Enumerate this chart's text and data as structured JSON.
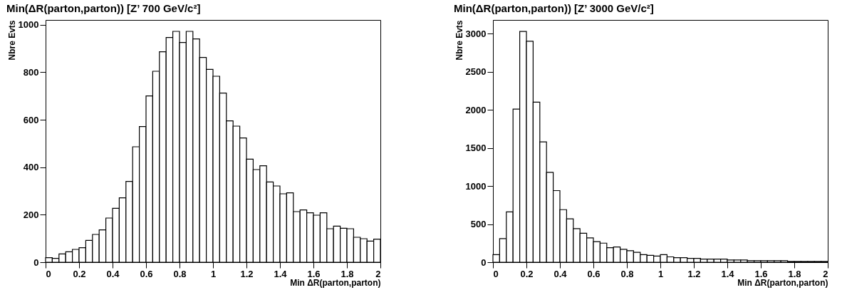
{
  "chart_data": [
    {
      "type": "histogram",
      "title": "Min(ΔR(parton,parton)) [Z’ 700 GeV/c²]",
      "xlabel": "Min ΔR(parton,parton)",
      "ylabel": "Nbre Evts",
      "color": "#000000",
      "bins": [
        0,
        0.04,
        0.08,
        0.12,
        0.16,
        0.2,
        0.24,
        0.28,
        0.32,
        0.36,
        0.4,
        0.44,
        0.48,
        0.52,
        0.56,
        0.6,
        0.64,
        0.68,
        0.72,
        0.76,
        0.8,
        0.84,
        0.88,
        0.92,
        0.96,
        1,
        1.04,
        1.08,
        1.12,
        1.16,
        1.2,
        1.24,
        1.28,
        1.32,
        1.36,
        1.4,
        1.44,
        1.48,
        1.52,
        1.56,
        1.6,
        1.64,
        1.68,
        1.72,
        1.76,
        1.8,
        1.84,
        1.88,
        1.92,
        1.96,
        2
      ],
      "values": [
        19,
        16,
        35,
        44,
        54,
        61,
        92,
        117,
        136,
        186,
        227,
        271,
        340,
        486,
        571,
        700,
        804,
        886,
        946,
        972,
        925,
        972,
        940,
        862,
        812,
        783,
        712,
        595,
        573,
        523,
        434,
        390,
        406,
        338,
        321,
        288,
        292,
        213,
        220,
        208,
        198,
        208,
        141,
        152,
        143,
        141,
        105,
        99,
        89,
        97
      ],
      "xlim": [
        0,
        2
      ],
      "xticks": [
        0,
        0.2,
        0.4,
        0.6,
        0.8,
        1,
        1.2,
        1.4,
        1.6,
        1.8,
        2
      ],
      "ylim": [
        0,
        1020
      ],
      "yticks": [
        0,
        200,
        400,
        600,
        800,
        1000
      ]
    },
    {
      "type": "histogram",
      "title": "Min(ΔR(parton,parton)) [Z’ 3000 GeV/c²]",
      "xlabel": "Min ΔR(parton,parton)",
      "ylabel": "Nbre Evts",
      "color": "#000000",
      "bins": [
        0,
        0.04,
        0.08,
        0.12,
        0.16,
        0.2,
        0.24,
        0.28,
        0.32,
        0.36,
        0.4,
        0.44,
        0.48,
        0.52,
        0.56,
        0.6,
        0.64,
        0.68,
        0.72,
        0.76,
        0.8,
        0.84,
        0.88,
        0.92,
        0.96,
        1,
        1.04,
        1.08,
        1.12,
        1.16,
        1.2,
        1.24,
        1.28,
        1.32,
        1.36,
        1.4,
        1.44,
        1.48,
        1.52,
        1.56,
        1.6,
        1.64,
        1.68,
        1.72,
        1.76,
        1.8,
        1.84,
        1.88,
        1.92,
        1.96,
        2
      ],
      "values": [
        100,
        310,
        660,
        2010,
        3030,
        2900,
        2100,
        1580,
        1180,
        940,
        690,
        570,
        440,
        380,
        320,
        270,
        250,
        190,
        200,
        170,
        150,
        130,
        100,
        90,
        80,
        100,
        70,
        60,
        60,
        50,
        50,
        40,
        40,
        40,
        40,
        30,
        30,
        30,
        20,
        20,
        20,
        20,
        20,
        20,
        10,
        10,
        10,
        10,
        10,
        10
      ],
      "xlim": [
        0,
        2
      ],
      "xticks": [
        0,
        0.2,
        0.4,
        0.6,
        0.8,
        1,
        1.2,
        1.4,
        1.6,
        1.8,
        2
      ],
      "ylim": [
        0,
        3180
      ],
      "yticks": [
        0,
        500,
        1000,
        1500,
        2000,
        2500,
        3000
      ]
    }
  ]
}
